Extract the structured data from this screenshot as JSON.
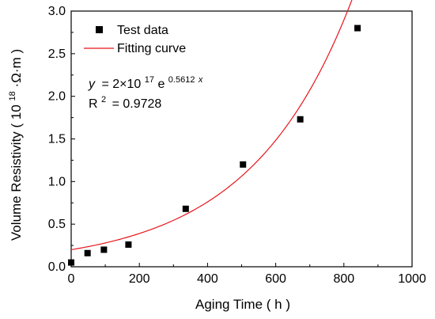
{
  "chart_data": {
    "type": "scatter",
    "xlabel": "Aging Time ( h )",
    "ylabel": {
      "main": "Volume Resistivity ( 10",
      "exponent": "18",
      "unit": "·Ω·m )"
    },
    "xlim": [
      0,
      1000
    ],
    "ylim": [
      0,
      3.0
    ],
    "xticks": [
      0,
      200,
      400,
      600,
      800,
      1000
    ],
    "yticks": [
      "0.0",
      "0.5",
      "1.0",
      "1.5",
      "2.0",
      "2.5",
      "3.0"
    ],
    "grid": false,
    "legend_position": "top-left",
    "series": [
      {
        "name": "Test data",
        "kind": "scatter",
        "marker": "square",
        "color": "#000000",
        "x": [
          0,
          48,
          96,
          168,
          336,
          504,
          672,
          840
        ],
        "y": [
          0.05,
          0.16,
          0.2,
          0.26,
          0.68,
          1.2,
          1.73,
          2.8
        ]
      },
      {
        "name": "Fitting curve",
        "kind": "line",
        "color": "#e8141a",
        "x_range": [
          0,
          840
        ],
        "fit": {
          "a": 0.2,
          "b": 0.5612,
          "x_unit_scale": 168
        }
      }
    ],
    "annotation": {
      "y_var": "y",
      "eq_part1": "= 2×10",
      "exp1": "17",
      "eq_part2": "e",
      "exp2_coef": "0.5612",
      "exp2_var": "x",
      "r2_label": "R",
      "r2_exp": "2",
      "r2_value": "= 0.9728"
    }
  }
}
